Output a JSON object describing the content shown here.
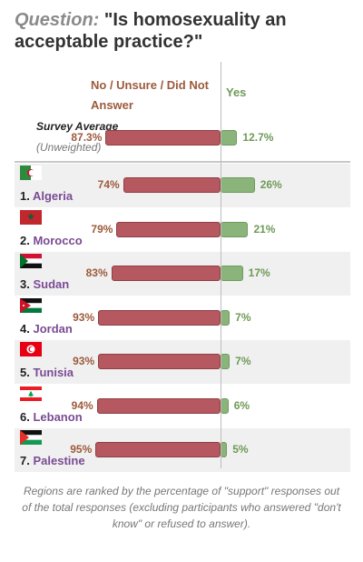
{
  "title": {
    "prefix": "Question:",
    "text": "\"Is homosexuality an acceptable practice?\""
  },
  "legend": {
    "no": "No / Unsure / Did Not Answer",
    "yes": "Yes"
  },
  "average": {
    "name": "Survey Average",
    "sub": "(Unweighted)",
    "no_label": "87.3%",
    "yes_label": "12.7%",
    "no": 87.3,
    "yes": 12.7
  },
  "footnote": "Regions are ranked by the percentage of \"support\" responses out of the total responses (excluding participants who answered \"don't know\" or refused to answer).",
  "colors": {
    "no": "#b5585f",
    "yes": "#8ab47a",
    "row_alt": "#f0f0f0"
  },
  "chart_data": {
    "type": "bar",
    "title": "\"Is homosexuality an acceptable practice?\"",
    "series": [
      {
        "name": "No / Unsure / Did Not Answer",
        "values": [
          74,
          79,
          83,
          93,
          93,
          94,
          95
        ]
      },
      {
        "name": "Yes",
        "values": [
          26,
          21,
          17,
          7,
          7,
          6,
          5
        ]
      }
    ],
    "categories": [
      "Algeria",
      "Morocco",
      "Sudan",
      "Jordan",
      "Tunisia",
      "Lebanon",
      "Palestine"
    ],
    "ranks": [
      "1.",
      "2.",
      "3.",
      "4.",
      "5.",
      "6.",
      "7."
    ],
    "no_labels": [
      "74%",
      "79%",
      "83%",
      "93%",
      "93%",
      "94%",
      "95%"
    ],
    "yes_labels": [
      "26%",
      "21%",
      "17%",
      "7%",
      "7%",
      "6%",
      "5%"
    ],
    "flags": [
      "algeria-flag",
      "morocco-flag",
      "sudan-flag",
      "jordan-flag",
      "tunisia-flag",
      "lebanon-flag",
      "palestine-flag"
    ],
    "xlim": [
      0,
      100
    ]
  }
}
